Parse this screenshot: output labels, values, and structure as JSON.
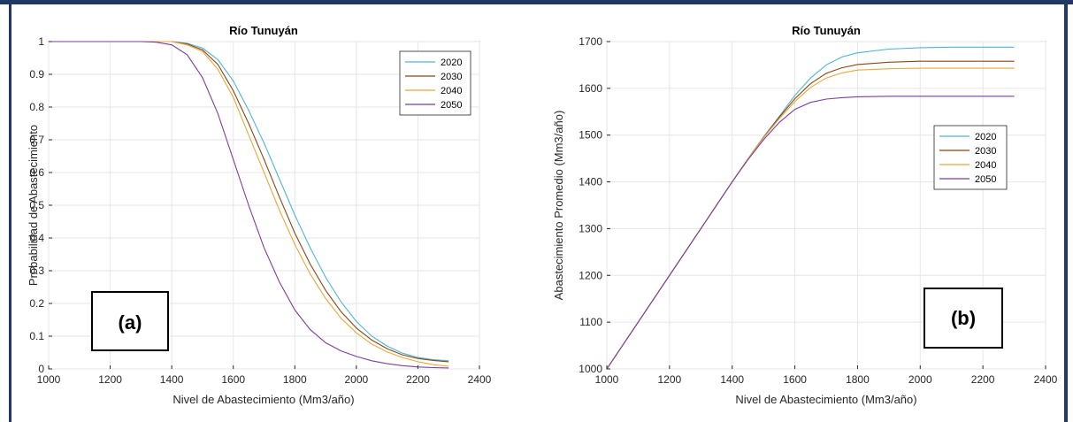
{
  "chart_data": [
    {
      "type": "line",
      "title": "Río Tunuyán",
      "xlabel": "Nivel de Abastecimiento (Mm3/año)",
      "ylabel": "Probabilidad de Abastecimiento",
      "xlim": [
        1000,
        2400
      ],
      "ylim": [
        0,
        1
      ],
      "xticks": [
        "1000",
        "1200",
        "1400",
        "1600",
        "1800",
        "2000",
        "2200",
        "2400"
      ],
      "yticks": [
        "0",
        "0.1",
        "0.2",
        "0.3",
        "0.4",
        "0.5",
        "0.6",
        "0.7",
        "0.8",
        "0.9",
        "1"
      ],
      "grid": true,
      "legend": "top-right",
      "panel_label": "(a)",
      "series": [
        {
          "name": "2020",
          "color": "#4db5d6",
          "x": [
            1000,
            1300,
            1400,
            1450,
            1500,
            1550,
            1600,
            1650,
            1700,
            1750,
            1800,
            1850,
            1900,
            1950,
            2000,
            2050,
            2100,
            2150,
            2200,
            2250,
            2300
          ],
          "y": [
            1,
            1,
            1,
            0.995,
            0.98,
            0.945,
            0.88,
            0.79,
            0.69,
            0.58,
            0.47,
            0.37,
            0.28,
            0.205,
            0.145,
            0.1,
            0.07,
            0.048,
            0.035,
            0.028,
            0.025
          ]
        },
        {
          "name": "2030",
          "color": "#8b4513",
          "x": [
            1000,
            1300,
            1400,
            1450,
            1500,
            1550,
            1600,
            1650,
            1700,
            1750,
            1800,
            1850,
            1900,
            1950,
            2000,
            2050,
            2100,
            2150,
            2200,
            2250,
            2300
          ],
          "y": [
            1,
            1,
            1,
            0.993,
            0.975,
            0.93,
            0.85,
            0.75,
            0.64,
            0.525,
            0.415,
            0.32,
            0.24,
            0.175,
            0.125,
            0.088,
            0.062,
            0.043,
            0.032,
            0.026,
            0.022
          ]
        },
        {
          "name": "2040",
          "color": "#e8a83c",
          "x": [
            1000,
            1300,
            1400,
            1450,
            1500,
            1550,
            1600,
            1650,
            1700,
            1750,
            1800,
            1850,
            1900,
            1950,
            2000,
            2050,
            2100,
            2150,
            2200,
            2250,
            2300
          ],
          "y": [
            1,
            1,
            1,
            0.99,
            0.97,
            0.915,
            0.83,
            0.715,
            0.6,
            0.485,
            0.38,
            0.29,
            0.215,
            0.155,
            0.11,
            0.076,
            0.052,
            0.035,
            0.022,
            0.013,
            0.008
          ]
        },
        {
          "name": "2050",
          "color": "#7b3f9e",
          "x": [
            1000,
            1300,
            1350,
            1400,
            1450,
            1500,
            1550,
            1600,
            1650,
            1700,
            1750,
            1800,
            1850,
            1900,
            1950,
            2000,
            2050,
            2100,
            2150,
            2200,
            2250,
            2300
          ],
          "y": [
            1,
            1,
            0.998,
            0.99,
            0.96,
            0.89,
            0.78,
            0.64,
            0.5,
            0.37,
            0.265,
            0.18,
            0.12,
            0.08,
            0.055,
            0.038,
            0.025,
            0.016,
            0.01,
            0.006,
            0.004,
            0.003
          ]
        }
      ]
    },
    {
      "type": "line",
      "title": "Río Tunuyán",
      "xlabel": "Nivel de Abastecimiento (Mm3/año)",
      "ylabel": "Abastecimiento Promedio (Mm3/año)",
      "xlim": [
        1000,
        2400
      ],
      "ylim": [
        1000,
        1700
      ],
      "xticks": [
        "1000",
        "1200",
        "1400",
        "1600",
        "1800",
        "2000",
        "2200",
        "2400"
      ],
      "yticks": [
        "1000",
        "1100",
        "1200",
        "1300",
        "1400",
        "1500",
        "1600",
        "1700"
      ],
      "grid": true,
      "legend": "right",
      "panel_label": "(b)",
      "series": [
        {
          "name": "2020",
          "color": "#4db5d6",
          "x": [
            1000,
            1400,
            1450,
            1500,
            1550,
            1600,
            1650,
            1700,
            1750,
            1800,
            1900,
            2000,
            2100,
            2200,
            2300
          ],
          "y": [
            1000,
            1400,
            1449,
            1496,
            1540,
            1585,
            1622,
            1650,
            1667,
            1676,
            1684,
            1687,
            1688,
            1688,
            1688
          ]
        },
        {
          "name": "2030",
          "color": "#8b4513",
          "x": [
            1000,
            1400,
            1450,
            1500,
            1550,
            1600,
            1650,
            1700,
            1750,
            1800,
            1900,
            2000,
            2100,
            2200,
            2300
          ],
          "y": [
            1000,
            1400,
            1449,
            1495,
            1538,
            1578,
            1610,
            1632,
            1644,
            1651,
            1656,
            1658,
            1658,
            1658,
            1658
          ]
        },
        {
          "name": "2040",
          "color": "#e8a83c",
          "x": [
            1000,
            1400,
            1450,
            1500,
            1550,
            1600,
            1650,
            1700,
            1750,
            1800,
            1900,
            2000,
            2100,
            2200,
            2300
          ],
          "y": [
            1000,
            1400,
            1449,
            1494,
            1535,
            1572,
            1602,
            1622,
            1633,
            1639,
            1642,
            1643,
            1643,
            1643,
            1643
          ]
        },
        {
          "name": "2050",
          "color": "#7b3f9e",
          "x": [
            1000,
            1400,
            1450,
            1500,
            1550,
            1600,
            1650,
            1700,
            1750,
            1800,
            1900,
            2000,
            2100,
            2200,
            2300
          ],
          "y": [
            1000,
            1400,
            1447,
            1490,
            1527,
            1555,
            1570,
            1577,
            1580,
            1582,
            1583,
            1583,
            1583,
            1583,
            1583
          ]
        }
      ]
    }
  ]
}
